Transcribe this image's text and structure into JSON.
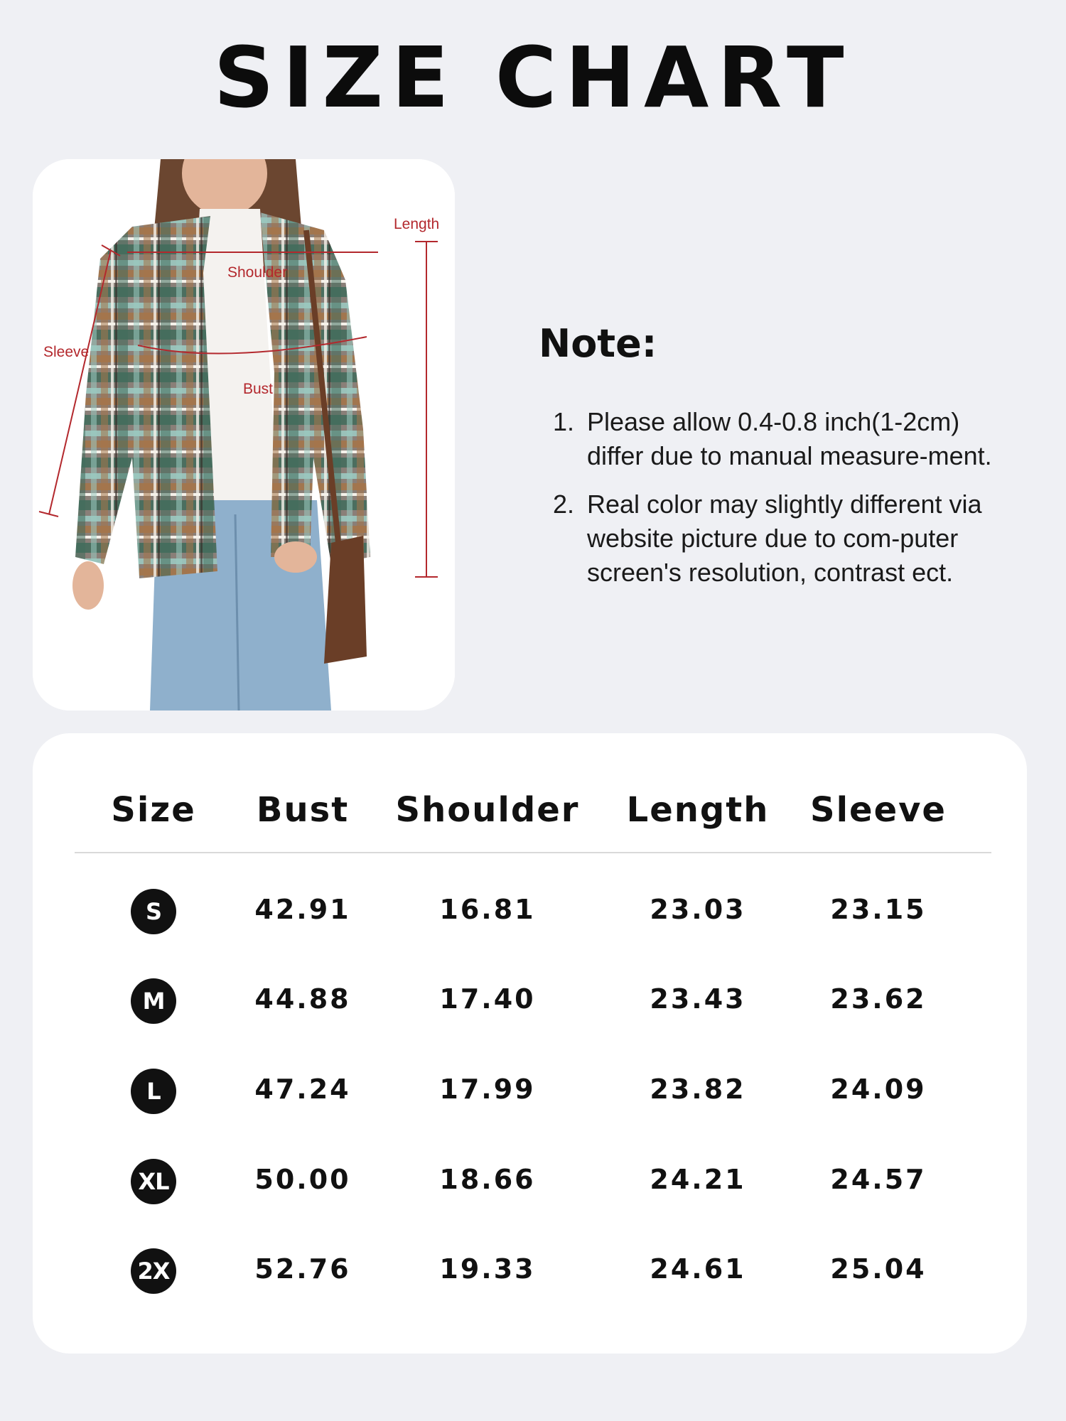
{
  "title": "SIZE CHART",
  "diagram": {
    "labels": {
      "length": "Length",
      "shoulder": "Shoulder",
      "sleeve": "Sleeve",
      "bust": "Bust"
    },
    "measure_color": "#b3282d"
  },
  "note": {
    "title": "Note:",
    "items": [
      {
        "num": "1.",
        "text": "Please allow 0.4-0.8 inch(1-2cm) differ due to manual measure-ment."
      },
      {
        "num": "2.",
        "text": "Real color may slightly different via website picture due to com-puter screen's resolution, contrast ect."
      }
    ]
  },
  "table": {
    "headers": [
      "Size",
      "Bust",
      "Shoulder",
      "Length",
      "Sleeve"
    ],
    "rows": [
      [
        "S",
        "42.91",
        "16.81",
        "23.03",
        "23.15"
      ],
      [
        "M",
        "44.88",
        "17.40",
        "23.43",
        "23.62"
      ],
      [
        "L",
        "47.24",
        "17.99",
        "23.82",
        "24.09"
      ],
      [
        "XL",
        "50.00",
        "18.66",
        "24.21",
        "24.57"
      ],
      [
        "2X",
        "52.76",
        "19.33",
        "24.61",
        "25.04"
      ]
    ]
  }
}
